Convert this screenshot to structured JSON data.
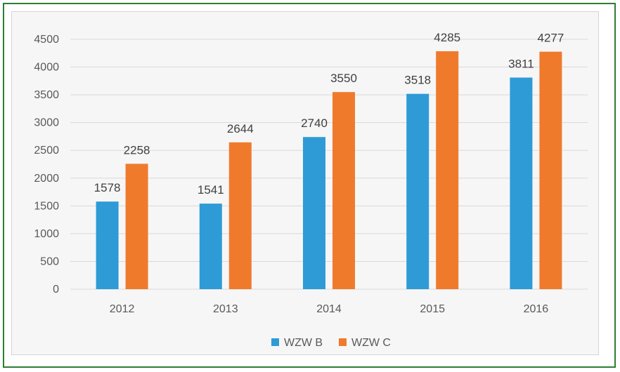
{
  "chart_data": {
    "type": "bar",
    "categories": [
      "2012",
      "2013",
      "2014",
      "2015",
      "2016"
    ],
    "series": [
      {
        "name": "WZW B",
        "values": [
          1578,
          1541,
          2740,
          3518,
          3811
        ],
        "color": "#2e9bd6"
      },
      {
        "name": "WZW C",
        "values": [
          2258,
          2644,
          3550,
          4285,
          4277
        ],
        "color": "#f07a2c"
      }
    ],
    "ylim": [
      0,
      4500
    ],
    "yticks": [
      "0",
      "500",
      "1000",
      "1500",
      "2000",
      "2500",
      "3000",
      "3500",
      "4000",
      "4500"
    ],
    "grid": true,
    "legend": "bottom",
    "colors": {
      "gridline": "#d9d9d9",
      "frame_border": "#2e7d32"
    }
  }
}
